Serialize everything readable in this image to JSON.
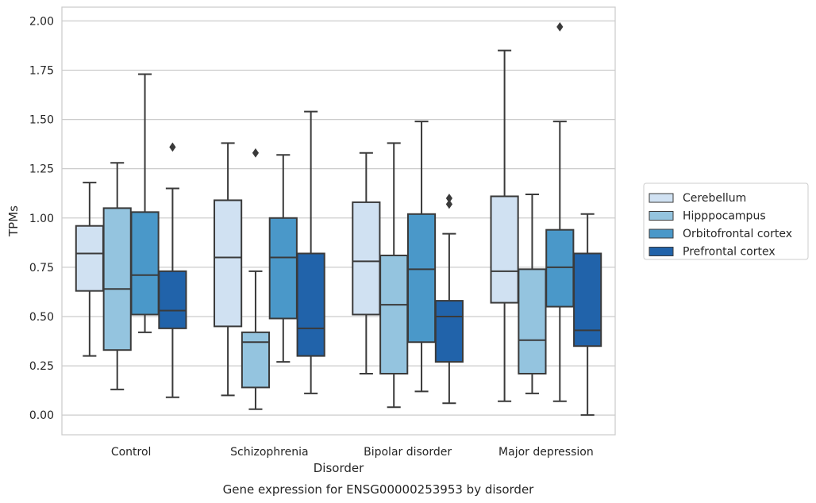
{
  "chart_data": {
    "type": "box",
    "title": "",
    "xlabel": "Disorder",
    "ylabel": "TPMs",
    "caption": "Gene expression for ENSG00000253953 by disorder",
    "categories": [
      "Control",
      "Schizophrenia",
      "Bipolar disorder",
      "Major depression"
    ],
    "ylim": [
      -0.1,
      2.07
    ],
    "yticks": [
      "0.00",
      "0.25",
      "0.50",
      "0.75",
      "1.00",
      "1.25",
      "1.50",
      "1.75",
      "2.00"
    ],
    "grid": true,
    "legend_position": "right",
    "series": [
      {
        "name": "Cerebellum",
        "color": "#d0e1f2",
        "boxes": [
          {
            "whislo": 0.3,
            "q1": 0.63,
            "med": 0.82,
            "q3": 0.96,
            "whishi": 1.18,
            "fliers": []
          },
          {
            "whislo": 0.1,
            "q1": 0.45,
            "med": 0.8,
            "q3": 1.09,
            "whishi": 1.38,
            "fliers": []
          },
          {
            "whislo": 0.21,
            "q1": 0.51,
            "med": 0.78,
            "q3": 1.08,
            "whishi": 1.33,
            "fliers": []
          },
          {
            "whislo": 0.07,
            "q1": 0.57,
            "med": 0.73,
            "q3": 1.11,
            "whishi": 1.85,
            "fliers": []
          }
        ]
      },
      {
        "name": "Hipppocampus",
        "color": "#94c4df",
        "boxes": [
          {
            "whislo": 0.13,
            "q1": 0.33,
            "med": 0.64,
            "q3": 1.05,
            "whishi": 1.28,
            "fliers": []
          },
          {
            "whislo": 0.03,
            "q1": 0.14,
            "med": 0.37,
            "q3": 0.42,
            "whishi": 0.73,
            "fliers": [
              1.33
            ]
          },
          {
            "whislo": 0.04,
            "q1": 0.21,
            "med": 0.56,
            "q3": 0.81,
            "whishi": 1.38,
            "fliers": []
          },
          {
            "whislo": 0.11,
            "q1": 0.21,
            "med": 0.38,
            "q3": 0.74,
            "whishi": 1.12,
            "fliers": []
          }
        ]
      },
      {
        "name": "Orbitofrontal cortex",
        "color": "#4a98c9",
        "boxes": [
          {
            "whislo": 0.42,
            "q1": 0.51,
            "med": 0.71,
            "q3": 1.03,
            "whishi": 1.73,
            "fliers": []
          },
          {
            "whislo": 0.27,
            "q1": 0.49,
            "med": 0.8,
            "q3": 1.0,
            "whishi": 1.32,
            "fliers": []
          },
          {
            "whislo": 0.12,
            "q1": 0.37,
            "med": 0.74,
            "q3": 1.02,
            "whishi": 1.49,
            "fliers": []
          },
          {
            "whislo": 0.07,
            "q1": 0.55,
            "med": 0.75,
            "q3": 0.94,
            "whishi": 1.49,
            "fliers": [
              1.97
            ]
          }
        ]
      },
      {
        "name": "Prefrontal cortex",
        "color": "#2163aa",
        "boxes": [
          {
            "whislo": 0.09,
            "q1": 0.44,
            "med": 0.53,
            "q3": 0.73,
            "whishi": 1.15,
            "fliers": [
              1.36
            ]
          },
          {
            "whislo": 0.11,
            "q1": 0.3,
            "med": 0.44,
            "q3": 0.82,
            "whishi": 1.54,
            "fliers": []
          },
          {
            "whislo": 0.06,
            "q1": 0.27,
            "med": 0.5,
            "q3": 0.58,
            "whishi": 0.92,
            "fliers": [
              1.07,
              1.1
            ]
          },
          {
            "whislo": 0.0,
            "q1": 0.35,
            "med": 0.43,
            "q3": 0.82,
            "whishi": 1.02,
            "fliers": []
          }
        ]
      }
    ]
  }
}
